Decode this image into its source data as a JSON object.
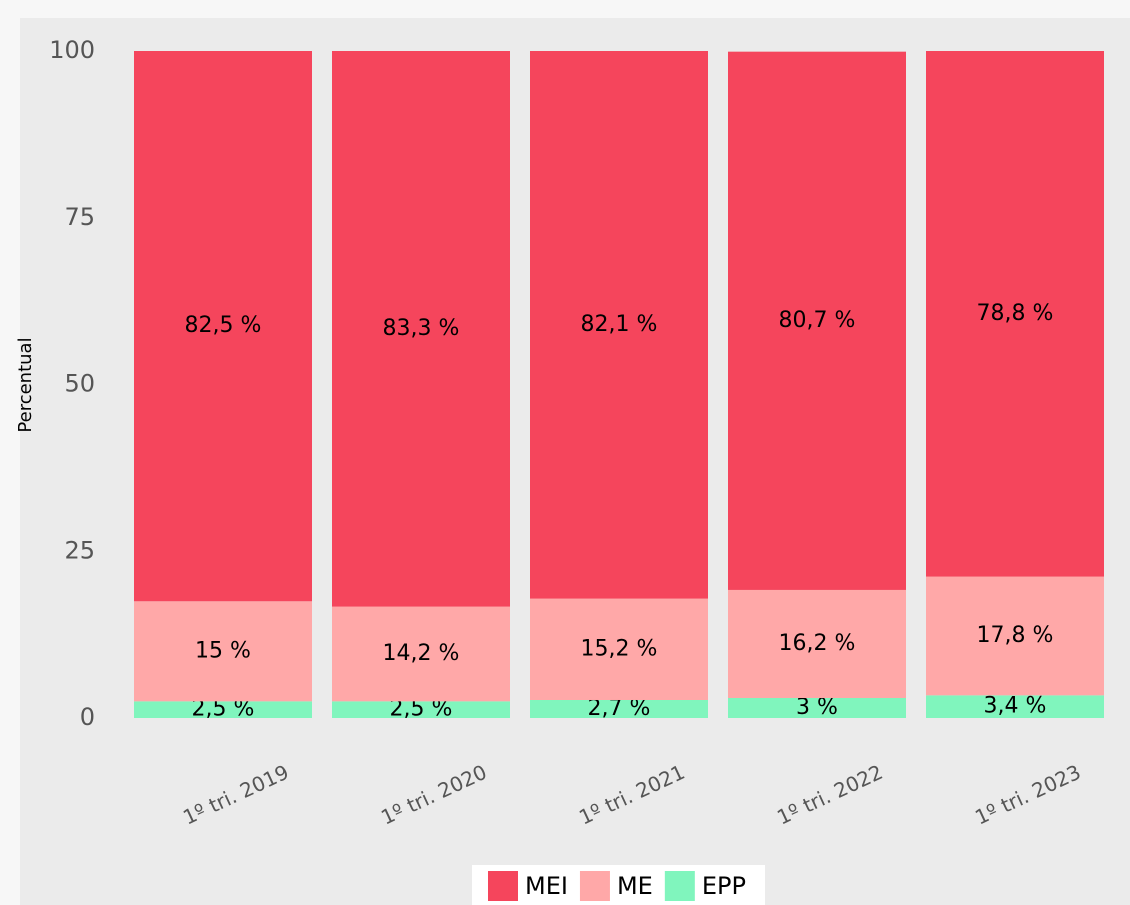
{
  "chart_data": {
    "type": "stacked_bar",
    "ylabel": "Percentual",
    "categories": [
      "1º tri. 2019",
      "1º tri. 2020",
      "1º tri. 2021",
      "1º tri. 2022",
      "1º tri. 2023"
    ],
    "series": [
      {
        "name": "MEI",
        "color": "#f5455c",
        "values": [
          82.5,
          83.3,
          82.1,
          80.7,
          78.8
        ],
        "value_labels": [
          "82,5 %",
          "83,3 %",
          "82,1 %",
          "80,7 %",
          "78,8 %"
        ]
      },
      {
        "name": "ME",
        "color": "#ffa8a8",
        "values": [
          15,
          14.2,
          15.2,
          16.2,
          17.8
        ],
        "value_labels": [
          "15 %",
          "14,2 %",
          "15,2 %",
          "16,2 %",
          "17,8 %"
        ]
      },
      {
        "name": "EPP",
        "color": "#80f5bd",
        "values": [
          2.5,
          2.5,
          2.7,
          3,
          3.4
        ],
        "value_labels": [
          "2,5 %",
          "2,5 %",
          "2,7 %",
          "3 %",
          "3,4 %"
        ]
      }
    ],
    "ylim": [
      0,
      100
    ],
    "yticks": [
      0,
      25,
      50,
      75,
      100
    ],
    "grid": false,
    "legend": "bottom"
  }
}
